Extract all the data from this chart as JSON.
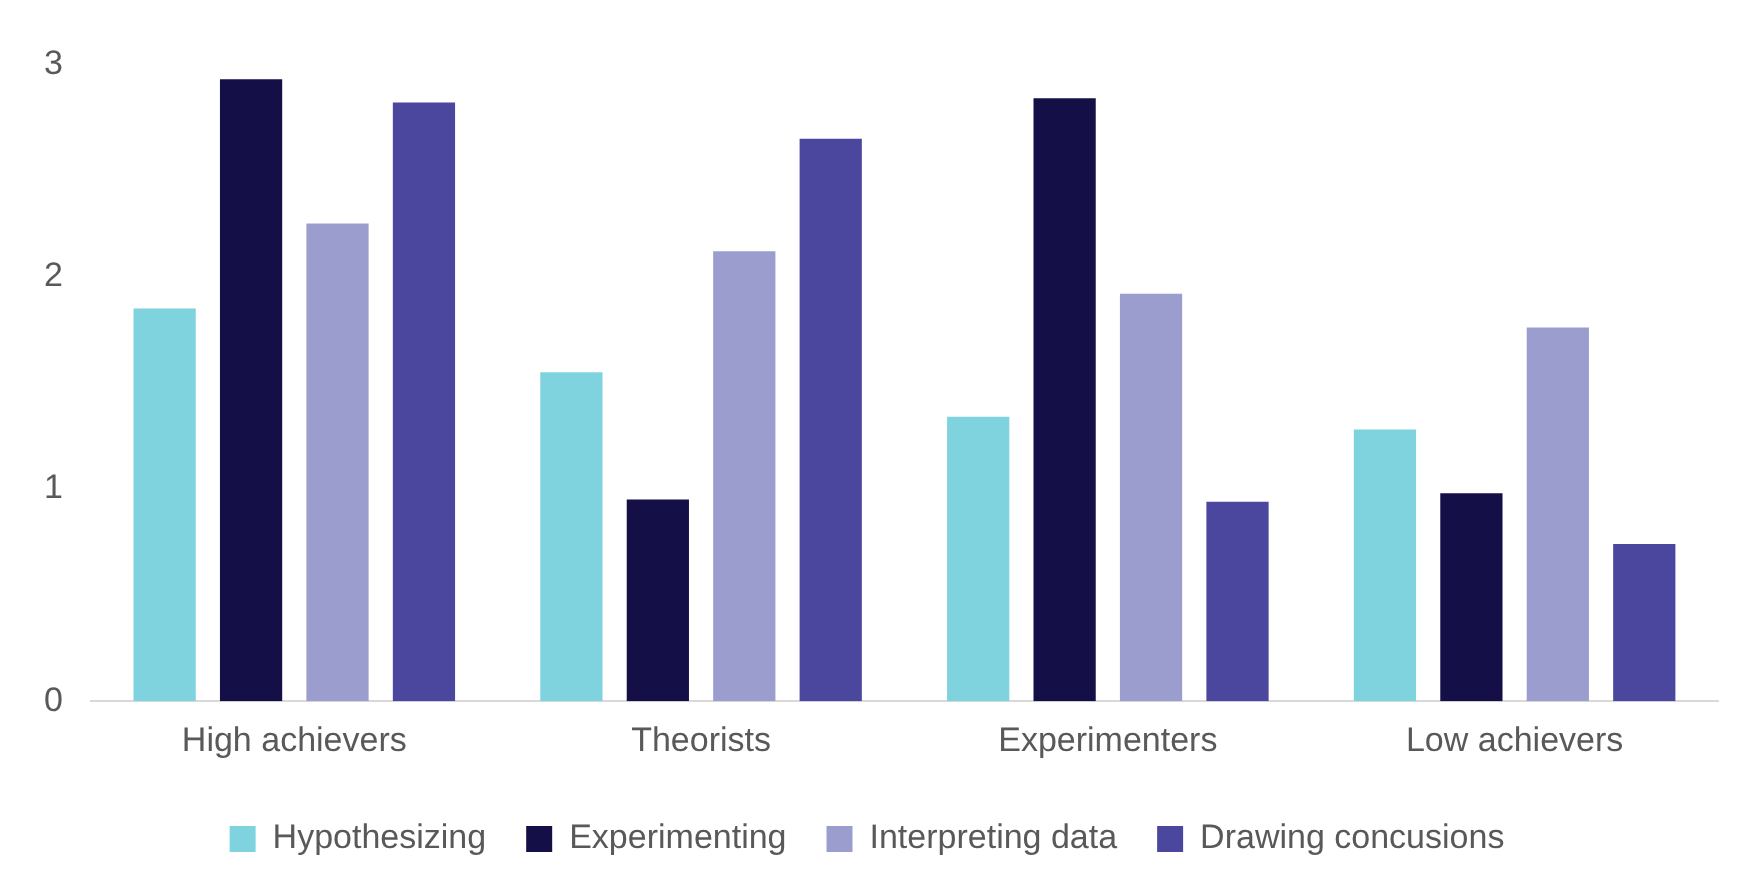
{
  "chart_data": {
    "type": "bar",
    "categories": [
      "High achievers",
      "Theorists",
      "Experimenters",
      "Low achievers"
    ],
    "series": [
      {
        "name": "Hypothesizing",
        "color": "#7fd3df",
        "values": [
          1.85,
          1.55,
          1.34,
          1.28
        ]
      },
      {
        "name": "Experimenting",
        "color": "#140f46",
        "values": [
          2.93,
          0.95,
          2.84,
          0.98
        ]
      },
      {
        "name": "Interpreting data",
        "color": "#9b9dcf",
        "values": [
          2.25,
          2.12,
          1.92,
          1.76
        ]
      },
      {
        "name": "Drawing concusions",
        "color": "#4b479f",
        "values": [
          2.82,
          2.65,
          0.94,
          0.74
        ]
      }
    ],
    "ylim": [
      0,
      3
    ],
    "yticks": [
      0,
      1,
      2,
      3
    ],
    "grid": false,
    "legend": "bottom"
  }
}
